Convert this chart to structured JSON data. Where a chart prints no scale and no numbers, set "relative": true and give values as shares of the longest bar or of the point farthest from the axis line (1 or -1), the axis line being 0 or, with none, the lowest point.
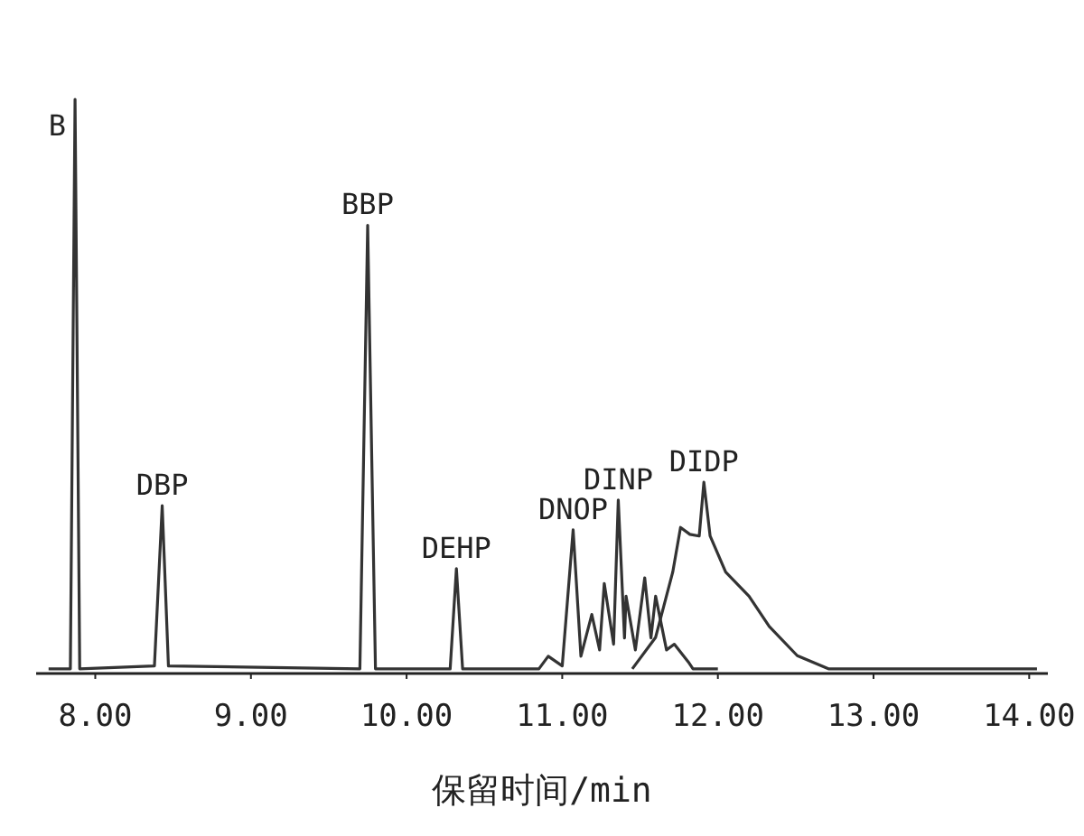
{
  "chart_data": {
    "type": "line",
    "relative": true,
    "xlabel": "保留时间/min",
    "xlim": [
      7.62,
      14.12
    ],
    "xticks": [
      {
        "value": 8,
        "label": "8.00"
      },
      {
        "value": 9,
        "label": "9.00"
      },
      {
        "value": 10,
        "label": "10.00"
      },
      {
        "value": 11,
        "label": "11.00"
      },
      {
        "value": 12,
        "label": "12.00"
      },
      {
        "value": 13,
        "label": "13.00"
      },
      {
        "value": 14,
        "label": "14.00"
      }
    ],
    "series": [
      {
        "color": "#333333",
        "x": [
          7.7,
          7.84,
          7.87,
          7.9,
          8.38,
          8.43,
          8.47,
          9.7,
          9.75,
          9.8,
          10.28,
          10.32,
          10.36,
          10.85,
          10.91,
          11.0,
          11.07,
          11.12,
          11.19,
          11.24,
          11.27,
          11.33,
          11.36,
          11.4,
          11.41,
          11.47,
          11.53,
          11.57,
          11.6,
          11.67,
          11.72,
          11.81,
          11.84,
          12.0
        ],
        "values": [
          0.005,
          0.005,
          1.0,
          0.005,
          0.01,
          0.29,
          0.01,
          0.005,
          0.78,
          0.005,
          0.005,
          0.18,
          0.005,
          0.005,
          0.027,
          0.01,
          0.248,
          0.027,
          0.1,
          0.038,
          0.154,
          0.048,
          0.3,
          0.059,
          0.132,
          0.038,
          0.164,
          0.059,
          0.132,
          0.038,
          0.048,
          0.017,
          0.005,
          0.005
        ]
      },
      {
        "color": "#333333",
        "x": [
          11.45,
          11.6,
          11.71,
          11.76,
          11.82,
          11.88,
          11.91,
          11.95,
          12.05,
          12.2,
          12.33,
          12.51,
          12.71,
          14.05
        ],
        "values": [
          0.005,
          0.06,
          0.174,
          0.252,
          0.24,
          0.237,
          0.331,
          0.237,
          0.174,
          0.132,
          0.079,
          0.028,
          0.005,
          0.005
        ]
      }
    ],
    "annotations": [
      {
        "text": "B",
        "x": 7.87,
        "y": 1.0
      },
      {
        "text": "DBP",
        "x": 8.43,
        "y": 0.29
      },
      {
        "text": "BBP",
        "x": 9.75,
        "y": 0.78
      },
      {
        "text": "DEHP",
        "x": 10.32,
        "y": 0.18
      },
      {
        "text": "DNOP",
        "x": 11.07,
        "y": 0.248
      },
      {
        "text": "DINP",
        "x": 11.36,
        "y": 0.3
      },
      {
        "text": "DIDP",
        "x": 11.91,
        "y": 0.331
      }
    ]
  }
}
